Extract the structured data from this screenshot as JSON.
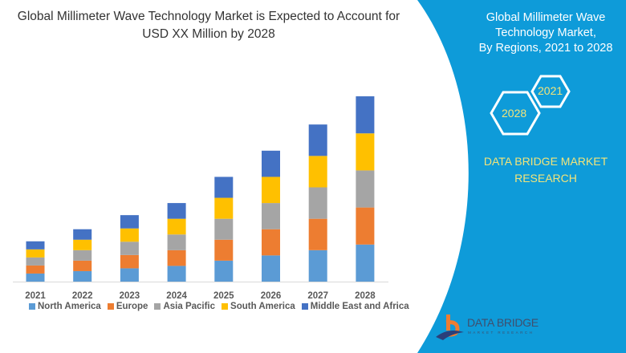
{
  "title": {
    "line1": "Global Millimeter Wave Technology Market is Expected to Account for",
    "line2": "USD XX Million by 2028"
  },
  "right_panel": {
    "title_line1": "Global Millimeter Wave",
    "title_line2": "Technology Market,",
    "title_line3": "By Regions, 2021 to 2028",
    "hex_start": "2021",
    "hex_end": "2028",
    "brand_line1": "DATA BRIDGE MARKET",
    "brand_line2": "RESEARCH",
    "logo_text": "DATA BRIDGE",
    "logo_subtext": "MARKET RESEARCH",
    "background_color": "#0e9bd9",
    "accent_color": "#f2e47a"
  },
  "chart_data": {
    "type": "bar",
    "stacked": true,
    "title": "Global Millimeter Wave Technology Market is Expected to Account for USD XX Million by 2028",
    "xlabel": "",
    "ylabel": "",
    "y_axis_visible": false,
    "grid": false,
    "legend_position": "bottom",
    "categories": [
      "2021",
      "2022",
      "2023",
      "2024",
      "2025",
      "2026",
      "2027",
      "2028"
    ],
    "ylim": [
      0,
      240
    ],
    "series": [
      {
        "name": "North America",
        "color": "#5b9bd5",
        "values": [
          10,
          13,
          16.5,
          19.5,
          26,
          32.5,
          39,
          46
        ]
      },
      {
        "name": "Europe",
        "color": "#ed7d31",
        "values": [
          10,
          13,
          16.5,
          19.5,
          26,
          32.5,
          39,
          46
        ]
      },
      {
        "name": "Asia Pacific",
        "color": "#a5a5a5",
        "values": [
          10,
          13,
          16.5,
          19.5,
          26,
          32.5,
          39,
          46
        ]
      },
      {
        "name": "South America",
        "color": "#ffc000",
        "values": [
          10,
          13,
          16.5,
          19.5,
          26,
          32.5,
          39,
          46
        ]
      },
      {
        "name": "Middle East and Africa",
        "color": "#4472c4",
        "values": [
          10,
          13,
          16.5,
          19.5,
          26,
          32.5,
          39,
          46
        ]
      }
    ]
  }
}
